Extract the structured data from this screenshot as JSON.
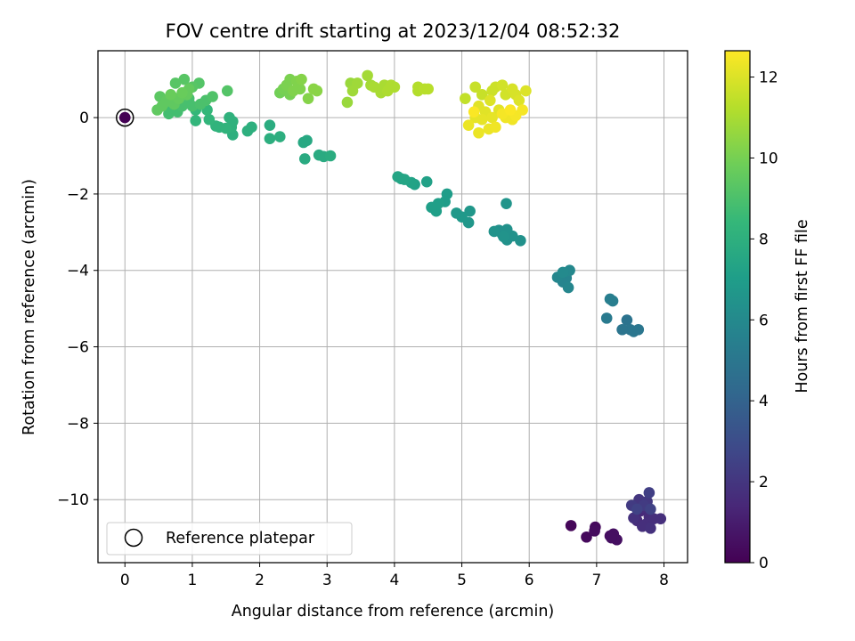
{
  "chart_data": {
    "type": "scatter",
    "title": "FOV centre drift starting at 2023/12/04 08:52:32",
    "xlabel": "Angular distance from reference (arcmin)",
    "ylabel": "Rotation from reference (arcmin)",
    "xlim": [
      -0.4,
      8.35
    ],
    "ylim": [
      -11.65,
      1.75
    ],
    "xticks": [
      0,
      1,
      2,
      3,
      4,
      5,
      6,
      7,
      8
    ],
    "xtick_labels": [
      "0",
      "1",
      "2",
      "3",
      "4",
      "5",
      "6",
      "7",
      "8"
    ],
    "yticks": [
      0,
      -2,
      -4,
      -6,
      -8,
      -10
    ],
    "ytick_labels": [
      "0",
      "−2",
      "−4",
      "−6",
      "−8",
      "−10"
    ],
    "grid": true,
    "legend": {
      "label": "Reference platepar",
      "placement": "lower-left"
    },
    "reference_point": {
      "x": 0,
      "y": 0,
      "hours": 0
    },
    "colorbar": {
      "label": "Hours from first FF file",
      "range": [
        0,
        12.65
      ],
      "ticks": [
        0,
        2,
        4,
        6,
        8,
        10,
        12
      ],
      "tick_labels": [
        "0",
        "2",
        "4",
        "6",
        "8",
        "10",
        "12"
      ],
      "colormap": "viridis",
      "stops": [
        "#440154",
        "#482878",
        "#3e4989",
        "#31688e",
        "#26828e",
        "#1f9e89",
        "#35b779",
        "#6ece58",
        "#b5de2b",
        "#fde725"
      ]
    },
    "points": [
      {
        "x": 6.62,
        "y": -10.68,
        "hours": 0.2
      },
      {
        "x": 6.85,
        "y": -10.98,
        "hours": 0.3
      },
      {
        "x": 6.98,
        "y": -10.72,
        "hours": 0.3
      },
      {
        "x": 6.97,
        "y": -10.82,
        "hours": 0.4
      },
      {
        "x": 7.2,
        "y": -10.95,
        "hours": 0.4
      },
      {
        "x": 7.25,
        "y": -10.9,
        "hours": 0.5
      },
      {
        "x": 7.3,
        "y": -11.05,
        "hours": 0.5
      },
      {
        "x": 7.22,
        "y": -11.0,
        "hours": 0.5
      },
      {
        "x": 7.65,
        "y": -10.3,
        "hours": 1.5
      },
      {
        "x": 7.7,
        "y": -10.2,
        "hours": 1.6
      },
      {
        "x": 7.78,
        "y": -10.45,
        "hours": 1.6
      },
      {
        "x": 7.6,
        "y": -10.55,
        "hours": 1.6
      },
      {
        "x": 7.75,
        "y": -10.62,
        "hours": 1.7
      },
      {
        "x": 7.85,
        "y": -10.5,
        "hours": 1.7
      },
      {
        "x": 7.95,
        "y": -10.5,
        "hours": 1.7
      },
      {
        "x": 7.68,
        "y": -10.7,
        "hours": 1.7
      },
      {
        "x": 7.8,
        "y": -10.75,
        "hours": 1.8
      },
      {
        "x": 7.55,
        "y": -10.48,
        "hours": 1.8
      },
      {
        "x": 7.63,
        "y": -10.0,
        "hours": 2.0
      },
      {
        "x": 7.75,
        "y": -10.05,
        "hours": 2.1
      },
      {
        "x": 7.52,
        "y": -10.15,
        "hours": 2.2
      },
      {
        "x": 7.7,
        "y": -10.15,
        "hours": 2.2
      },
      {
        "x": 7.78,
        "y": -9.82,
        "hours": 2.4
      },
      {
        "x": 7.8,
        "y": -10.25,
        "hours": 2.5
      },
      {
        "x": 7.6,
        "y": -10.25,
        "hours": 2.5
      },
      {
        "x": 7.45,
        "y": -5.3,
        "hours": 4.8
      },
      {
        "x": 7.5,
        "y": -5.55,
        "hours": 4.9
      },
      {
        "x": 7.38,
        "y": -5.55,
        "hours": 4.9
      },
      {
        "x": 7.55,
        "y": -5.6,
        "hours": 5.0
      },
      {
        "x": 7.62,
        "y": -5.55,
        "hours": 5.0
      },
      {
        "x": 7.15,
        "y": -5.25,
        "hours": 5.2
      },
      {
        "x": 7.2,
        "y": -4.75,
        "hours": 5.4
      },
      {
        "x": 7.24,
        "y": -4.8,
        "hours": 5.4
      },
      {
        "x": 6.55,
        "y": -4.2,
        "hours": 5.7
      },
      {
        "x": 6.5,
        "y": -4.3,
        "hours": 5.7
      },
      {
        "x": 6.58,
        "y": -4.45,
        "hours": 5.8
      },
      {
        "x": 6.42,
        "y": -4.18,
        "hours": 5.8
      },
      {
        "x": 6.6,
        "y": -4.0,
        "hours": 5.9
      },
      {
        "x": 6.5,
        "y": -4.05,
        "hours": 6.0
      },
      {
        "x": 5.55,
        "y": -2.95,
        "hours": 6.3
      },
      {
        "x": 5.6,
        "y": -3.05,
        "hours": 6.3
      },
      {
        "x": 5.67,
        "y": -3.2,
        "hours": 6.4
      },
      {
        "x": 5.75,
        "y": -3.1,
        "hours": 6.4
      },
      {
        "x": 5.87,
        "y": -3.22,
        "hours": 6.4
      },
      {
        "x": 5.67,
        "y": -2.93,
        "hours": 6.4
      },
      {
        "x": 5.48,
        "y": -2.98,
        "hours": 6.5
      },
      {
        "x": 5.62,
        "y": -3.12,
        "hours": 6.5
      },
      {
        "x": 5.66,
        "y": -2.25,
        "hours": 6.6
      },
      {
        "x": 5.12,
        "y": -2.45,
        "hours": 6.7
      },
      {
        "x": 5.1,
        "y": -2.75,
        "hours": 6.7
      },
      {
        "x": 5.0,
        "y": -2.6,
        "hours": 6.8
      },
      {
        "x": 4.92,
        "y": -2.5,
        "hours": 6.8
      },
      {
        "x": 4.78,
        "y": -2.0,
        "hours": 7.0
      },
      {
        "x": 4.75,
        "y": -2.2,
        "hours": 7.0
      },
      {
        "x": 4.65,
        "y": -2.25,
        "hours": 7.1
      },
      {
        "x": 4.62,
        "y": -2.45,
        "hours": 7.1
      },
      {
        "x": 4.55,
        "y": -2.35,
        "hours": 7.1
      },
      {
        "x": 4.3,
        "y": -1.75,
        "hours": 7.2
      },
      {
        "x": 4.48,
        "y": -1.68,
        "hours": 7.2
      },
      {
        "x": 4.25,
        "y": -1.7,
        "hours": 7.3
      },
      {
        "x": 4.1,
        "y": -1.6,
        "hours": 7.3
      },
      {
        "x": 4.05,
        "y": -1.55,
        "hours": 7.4
      },
      {
        "x": 4.15,
        "y": -1.62,
        "hours": 7.4
      },
      {
        "x": 2.7,
        "y": -0.6,
        "hours": 7.6
      },
      {
        "x": 2.65,
        "y": -0.65,
        "hours": 7.6
      },
      {
        "x": 2.67,
        "y": -1.08,
        "hours": 7.7
      },
      {
        "x": 2.88,
        "y": -0.98,
        "hours": 7.7
      },
      {
        "x": 2.95,
        "y": -1.02,
        "hours": 7.7
      },
      {
        "x": 3.05,
        "y": -1.0,
        "hours": 7.8
      },
      {
        "x": 2.15,
        "y": -0.2,
        "hours": 7.8
      },
      {
        "x": 2.15,
        "y": -0.55,
        "hours": 7.9
      },
      {
        "x": 2.3,
        "y": -0.5,
        "hours": 7.9
      },
      {
        "x": 1.88,
        "y": -0.25,
        "hours": 8.0
      },
      {
        "x": 1.82,
        "y": -0.35,
        "hours": 8.0
      },
      {
        "x": 1.6,
        "y": -0.45,
        "hours": 8.0
      },
      {
        "x": 1.55,
        "y": 0.0,
        "hours": 8.1
      },
      {
        "x": 1.58,
        "y": -0.25,
        "hours": 8.1
      },
      {
        "x": 1.6,
        "y": -0.1,
        "hours": 8.1
      },
      {
        "x": 1.5,
        "y": -0.28,
        "hours": 8.2
      },
      {
        "x": 1.4,
        "y": -0.25,
        "hours": 8.2
      },
      {
        "x": 1.35,
        "y": -0.22,
        "hours": 8.2
      },
      {
        "x": 1.25,
        "y": -0.05,
        "hours": 8.3
      },
      {
        "x": 1.05,
        "y": -0.08,
        "hours": 8.3
      },
      {
        "x": 1.05,
        "y": 0.2,
        "hours": 8.4
      },
      {
        "x": 1.22,
        "y": 0.2,
        "hours": 8.4
      },
      {
        "x": 0.82,
        "y": 0.35,
        "hours": 8.6
      },
      {
        "x": 0.9,
        "y": 0.45,
        "hours": 8.7
      },
      {
        "x": 0.7,
        "y": 0.25,
        "hours": 8.7
      },
      {
        "x": 0.65,
        "y": 0.1,
        "hours": 8.8
      },
      {
        "x": 0.78,
        "y": 0.15,
        "hours": 8.8
      },
      {
        "x": 0.85,
        "y": 0.3,
        "hours": 8.9
      },
      {
        "x": 0.95,
        "y": 0.5,
        "hours": 8.9
      },
      {
        "x": 1.0,
        "y": 0.3,
        "hours": 8.9
      },
      {
        "x": 1.12,
        "y": 0.35,
        "hours": 9.0
      },
      {
        "x": 1.2,
        "y": 0.45,
        "hours": 9.0
      },
      {
        "x": 1.3,
        "y": 0.55,
        "hours": 9.1
      },
      {
        "x": 1.52,
        "y": 0.7,
        "hours": 9.2
      },
      {
        "x": 1.1,
        "y": 0.9,
        "hours": 9.2
      },
      {
        "x": 1.0,
        "y": 0.8,
        "hours": 9.3
      },
      {
        "x": 0.88,
        "y": 1.0,
        "hours": 9.3
      },
      {
        "x": 0.75,
        "y": 0.9,
        "hours": 9.3
      },
      {
        "x": 0.7,
        "y": 0.55,
        "hours": 9.4
      },
      {
        "x": 0.6,
        "y": 0.4,
        "hours": 9.4
      },
      {
        "x": 0.52,
        "y": 0.55,
        "hours": 9.4
      },
      {
        "x": 0.48,
        "y": 0.2,
        "hours": 9.5
      },
      {
        "x": 0.55,
        "y": 0.3,
        "hours": 9.5
      },
      {
        "x": 0.62,
        "y": 0.45,
        "hours": 9.5
      },
      {
        "x": 0.73,
        "y": 0.35,
        "hours": 9.5
      },
      {
        "x": 0.8,
        "y": 0.5,
        "hours": 9.6
      },
      {
        "x": 0.92,
        "y": 0.6,
        "hours": 9.6
      },
      {
        "x": 0.95,
        "y": 0.75,
        "hours": 9.6
      },
      {
        "x": 0.85,
        "y": 0.65,
        "hours": 9.7
      },
      {
        "x": 0.68,
        "y": 0.6,
        "hours": 9.7
      },
      {
        "x": 2.3,
        "y": 0.65,
        "hours": 9.9
      },
      {
        "x": 2.35,
        "y": 0.75,
        "hours": 10.0
      },
      {
        "x": 2.45,
        "y": 0.6,
        "hours": 10.0
      },
      {
        "x": 2.4,
        "y": 0.85,
        "hours": 10.1
      },
      {
        "x": 2.45,
        "y": 1.0,
        "hours": 10.1
      },
      {
        "x": 2.55,
        "y": 0.95,
        "hours": 10.2
      },
      {
        "x": 2.6,
        "y": 0.75,
        "hours": 10.2
      },
      {
        "x": 2.5,
        "y": 0.7,
        "hours": 10.2
      },
      {
        "x": 2.62,
        "y": 1.0,
        "hours": 10.3
      },
      {
        "x": 2.72,
        "y": 0.5,
        "hours": 10.3
      },
      {
        "x": 2.8,
        "y": 0.75,
        "hours": 10.4
      },
      {
        "x": 2.85,
        "y": 0.7,
        "hours": 10.4
      },
      {
        "x": 3.3,
        "y": 0.4,
        "hours": 10.7
      },
      {
        "x": 3.35,
        "y": 0.9,
        "hours": 10.7
      },
      {
        "x": 3.38,
        "y": 0.7,
        "hours": 10.8
      },
      {
        "x": 3.45,
        "y": 0.9,
        "hours": 10.8
      },
      {
        "x": 3.6,
        "y": 1.1,
        "hours": 10.9
      },
      {
        "x": 3.65,
        "y": 0.85,
        "hours": 10.9
      },
      {
        "x": 3.7,
        "y": 0.8,
        "hours": 11.0
      },
      {
        "x": 3.8,
        "y": 0.65,
        "hours": 11.0
      },
      {
        "x": 3.85,
        "y": 0.85,
        "hours": 11.0
      },
      {
        "x": 3.9,
        "y": 0.7,
        "hours": 11.1
      },
      {
        "x": 3.95,
        "y": 0.85,
        "hours": 11.1
      },
      {
        "x": 4.0,
        "y": 0.8,
        "hours": 11.1
      },
      {
        "x": 4.35,
        "y": 0.8,
        "hours": 11.2
      },
      {
        "x": 4.35,
        "y": 0.7,
        "hours": 11.2
      },
      {
        "x": 4.45,
        "y": 0.75,
        "hours": 11.3
      },
      {
        "x": 4.5,
        "y": 0.75,
        "hours": 11.3
      },
      {
        "x": 5.05,
        "y": 0.5,
        "hours": 11.5
      },
      {
        "x": 5.2,
        "y": 0.8,
        "hours": 11.6
      },
      {
        "x": 5.3,
        "y": 0.6,
        "hours": 11.6
      },
      {
        "x": 5.45,
        "y": 0.7,
        "hours": 11.7
      },
      {
        "x": 5.5,
        "y": 0.8,
        "hours": 11.7
      },
      {
        "x": 5.6,
        "y": 0.85,
        "hours": 11.8
      },
      {
        "x": 5.65,
        "y": 0.6,
        "hours": 11.8
      },
      {
        "x": 5.75,
        "y": 0.75,
        "hours": 11.9
      },
      {
        "x": 5.8,
        "y": 0.6,
        "hours": 11.9
      },
      {
        "x": 5.85,
        "y": 0.45,
        "hours": 12.0
      },
      {
        "x": 5.95,
        "y": 0.7,
        "hours": 12.0
      },
      {
        "x": 5.42,
        "y": 0.45,
        "hours": 12.0
      },
      {
        "x": 5.25,
        "y": 0.3,
        "hours": 12.1
      },
      {
        "x": 5.35,
        "y": 0.15,
        "hours": 12.1
      },
      {
        "x": 5.55,
        "y": 0.2,
        "hours": 12.1
      },
      {
        "x": 5.45,
        "y": 0.0,
        "hours": 12.2
      },
      {
        "x": 5.3,
        "y": -0.05,
        "hours": 12.2
      },
      {
        "x": 5.2,
        "y": 0.0,
        "hours": 12.2
      },
      {
        "x": 5.1,
        "y": -0.2,
        "hours": 12.3
      },
      {
        "x": 5.25,
        "y": -0.4,
        "hours": 12.3
      },
      {
        "x": 5.4,
        "y": -0.3,
        "hours": 12.3
      },
      {
        "x": 5.5,
        "y": -0.25,
        "hours": 12.4
      },
      {
        "x": 5.65,
        "y": 0.0,
        "hours": 12.4
      },
      {
        "x": 5.75,
        "y": -0.05,
        "hours": 12.4
      },
      {
        "x": 5.8,
        "y": 0.05,
        "hours": 12.5
      },
      {
        "x": 5.9,
        "y": 0.2,
        "hours": 12.5
      },
      {
        "x": 5.6,
        "y": 0.1,
        "hours": 12.5
      },
      {
        "x": 5.72,
        "y": 0.2,
        "hours": 12.6
      },
      {
        "x": 5.18,
        "y": 0.15,
        "hours": 12.6
      }
    ]
  }
}
